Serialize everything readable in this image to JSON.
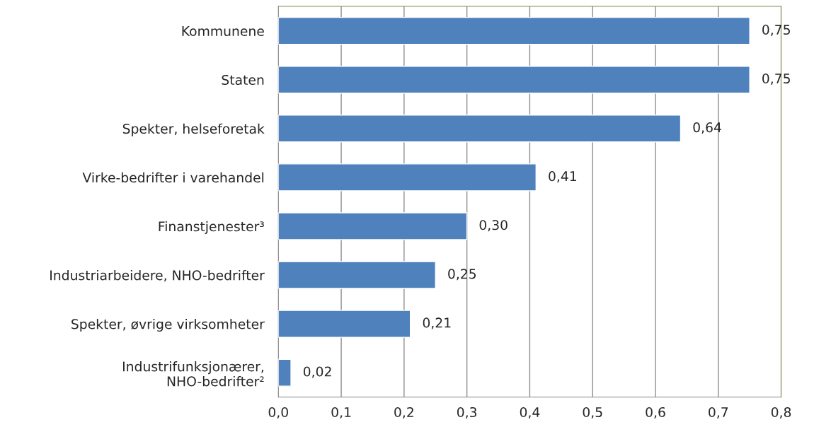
{
  "chart_data": {
    "type": "bar",
    "orientation": "horizontal",
    "categories": [
      "Kommunene",
      "Staten",
      "Spekter, helseforetak",
      "Virke-bedrifter i varehandel",
      "Finanstjenester³",
      "Industriarbeidere, NHO-bedrifter",
      "Spekter, øvrige virksomheter",
      "Industrifunksjonærer,\nNHO-bedrifter²"
    ],
    "values": [
      0.75,
      0.75,
      0.64,
      0.41,
      0.3,
      0.25,
      0.21,
      0.02
    ],
    "value_labels": [
      "0,75",
      "0,75",
      "0,64",
      "0,41",
      "0,30",
      "0,25",
      "0,21",
      "0,02"
    ],
    "color": "#4f81bd",
    "xlim": [
      0,
      0.8
    ],
    "xticks": [
      {
        "value": 0,
        "label": "0,0"
      },
      {
        "value": 0.1,
        "label": "0,1"
      },
      {
        "value": 0.2,
        "label": "0,2"
      },
      {
        "value": 0.3,
        "label": "0,3"
      },
      {
        "value": 0.4,
        "label": "0,4"
      },
      {
        "value": 0.5,
        "label": "0,5"
      },
      {
        "value": 0.6,
        "label": "0,6"
      },
      {
        "value": 0.7,
        "label": "0,7"
      },
      {
        "value": 0.8,
        "label": "0,8"
      }
    ],
    "grid": "x"
  }
}
